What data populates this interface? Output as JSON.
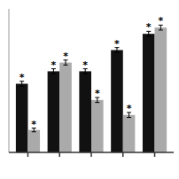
{
  "chart_data": {
    "type": "bar",
    "categories": [
      null,
      null,
      null,
      null,
      null
    ],
    "series": [
      {
        "color": "#111111",
        "values": [
          55,
          65,
          65,
          82,
          95
        ],
        "errors": [
          2.0,
          2.0,
          2.0,
          2.0,
          2.0
        ],
        "annotations": [
          "*",
          "*",
          "*",
          "*",
          "*"
        ]
      },
      {
        "color": "#aaaaaa",
        "values": [
          18,
          72,
          42,
          30,
          100
        ],
        "errors": [
          1.5,
          2.0,
          2.0,
          2.0,
          2.0
        ],
        "annotations": [
          "*",
          "*",
          "*",
          "*",
          "*"
        ]
      }
    ],
    "ylim": [
      0,
      115
    ],
    "yticks": [],
    "grid": false,
    "tick_labels": false
  }
}
